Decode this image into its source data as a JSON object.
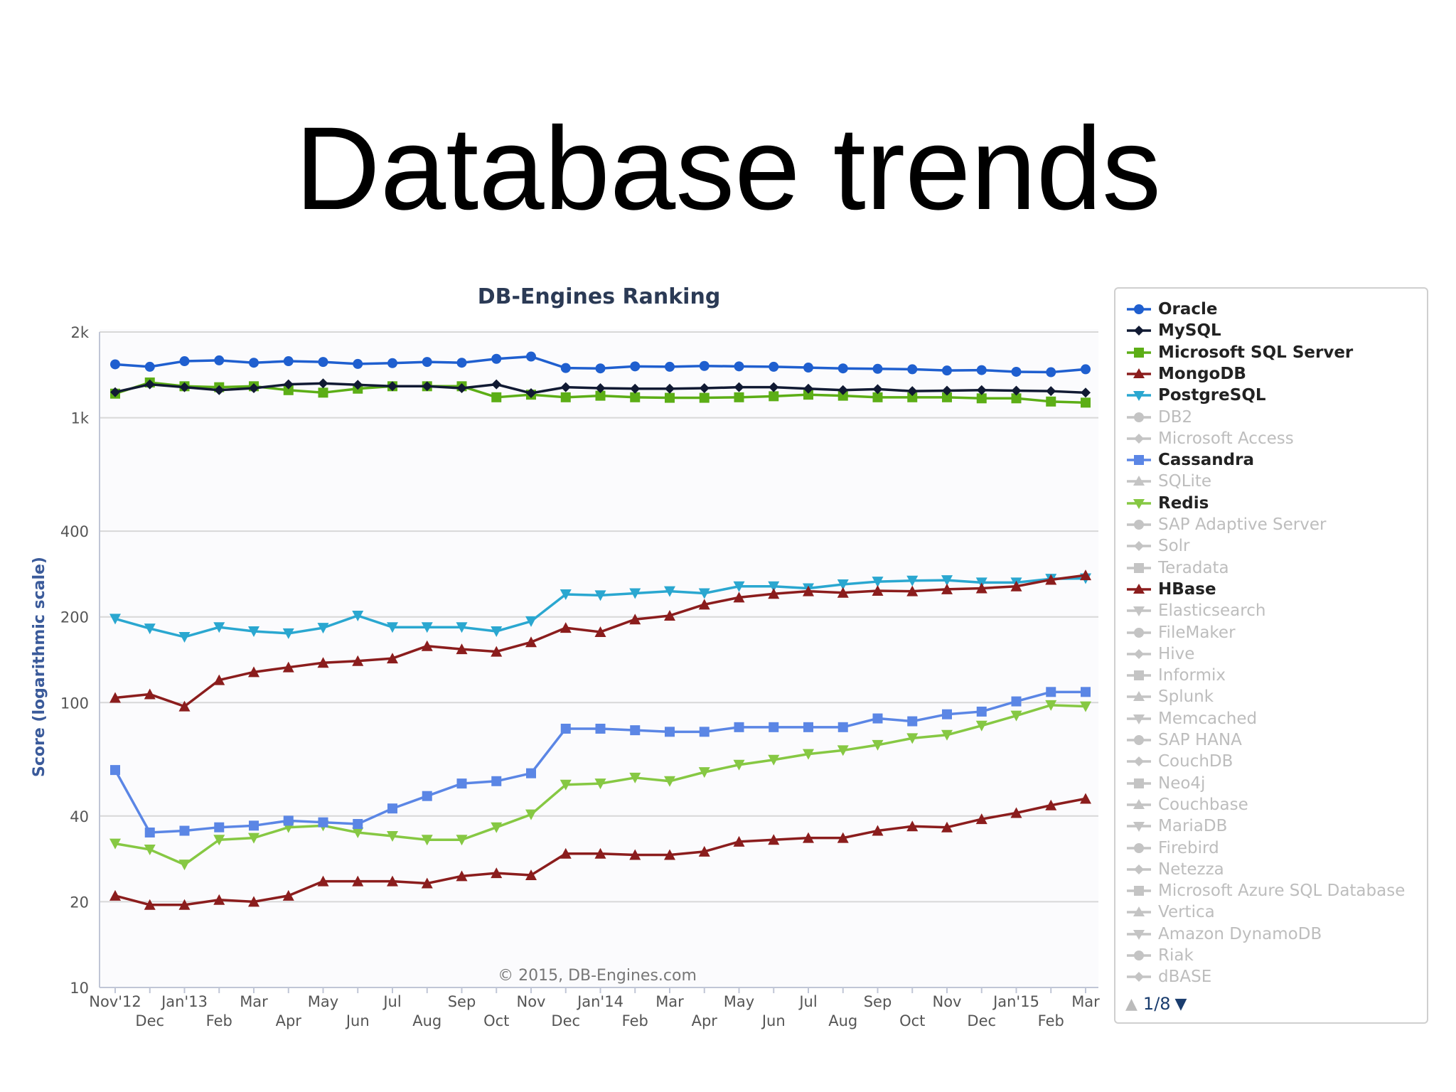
{
  "slide": {
    "title": "Database trends"
  },
  "chart_data": {
    "type": "line",
    "title": "DB-Engines Ranking",
    "ylabel": "Score (logarithmic scale)",
    "yscale": "log",
    "ylim": [
      10,
      2000
    ],
    "yticks": [
      10,
      20,
      40,
      100,
      200,
      400,
      1000,
      2000
    ],
    "ytick_labels": [
      "10",
      "20",
      "40",
      "100",
      "200",
      "400",
      "1k",
      "2k"
    ],
    "grid": true,
    "legend_position": "right",
    "credit": "© 2015, DB-Engines.com",
    "x": [
      "2012-11",
      "2012-12",
      "2013-01",
      "2013-02",
      "2013-03",
      "2013-04",
      "2013-05",
      "2013-06",
      "2013-07",
      "2013-08",
      "2013-09",
      "2013-10",
      "2013-11",
      "2013-12",
      "2014-01",
      "2014-02",
      "2014-03",
      "2014-04",
      "2014-05",
      "2014-06",
      "2014-07",
      "2014-08",
      "2014-09",
      "2014-10",
      "2014-11",
      "2014-12",
      "2015-01",
      "2015-02",
      "2015-03"
    ],
    "xtick_labels_top": [
      "Nov'12",
      "Jan'13",
      "Mar",
      "May",
      "Jul",
      "Sep",
      "Nov",
      "Jan'14",
      "Mar",
      "May",
      "Jul",
      "Sep",
      "Nov",
      "Jan'15",
      "Mar"
    ],
    "xtick_labels_bottom": [
      "Dec",
      "Feb",
      "Apr",
      "Jun",
      "Aug",
      "Oct",
      "Dec",
      "Feb",
      "Apr",
      "Jun",
      "Aug",
      "Oct",
      "Dec",
      "Feb"
    ],
    "series": [
      {
        "name": "Oracle",
        "color": "#1f5fcf",
        "marker": "circle",
        "visible": true,
        "values": [
          1540,
          1510,
          1580,
          1590,
          1560,
          1580,
          1570,
          1545,
          1555,
          1570,
          1560,
          1610,
          1640,
          1495,
          1490,
          1515,
          1510,
          1520,
          1515,
          1510,
          1500,
          1490,
          1485,
          1480,
          1465,
          1470,
          1450,
          1445,
          1480
        ]
      },
      {
        "name": "MySQL",
        "color": "#111a33",
        "marker": "diamond",
        "visible": true,
        "values": [
          1230,
          1310,
          1280,
          1250,
          1270,
          1310,
          1320,
          1305,
          1290,
          1290,
          1270,
          1310,
          1220,
          1280,
          1270,
          1265,
          1265,
          1270,
          1280,
          1280,
          1265,
          1250,
          1260,
          1240,
          1245,
          1250,
          1245,
          1240,
          1225
        ]
      },
      {
        "name": "Microsoft SQL Server",
        "color": "#5cae16",
        "marker": "square",
        "visible": true,
        "values": [
          1215,
          1330,
          1290,
          1280,
          1290,
          1250,
          1225,
          1265,
          1290,
          1290,
          1290,
          1180,
          1205,
          1180,
          1195,
          1180,
          1175,
          1175,
          1180,
          1190,
          1205,
          1195,
          1180,
          1180,
          1180,
          1170,
          1170,
          1140,
          1130
        ]
      },
      {
        "name": "MongoDB",
        "color": "#8b1d1d",
        "marker": "triangle",
        "visible": true,
        "values": [
          104,
          107,
          97,
          120,
          128,
          133,
          138,
          140,
          143,
          158,
          154,
          151,
          163,
          183,
          177,
          196,
          202,
          221,
          234,
          241,
          246,
          243,
          247,
          246,
          250,
          252,
          256,
          270,
          280
        ]
      },
      {
        "name": "PostgreSQL",
        "color": "#2aa7d0",
        "marker": "triangle-down",
        "visible": true,
        "values": [
          197,
          182,
          170,
          184,
          178,
          175,
          183,
          202,
          184,
          184,
          184,
          178,
          193,
          240,
          238,
          242,
          246,
          242,
          256,
          256,
          252,
          260,
          266,
          268,
          269,
          264,
          264,
          272,
          273
        ]
      },
      {
        "name": "DB2",
        "color": "#bdbdbd",
        "marker": "circle",
        "visible": false
      },
      {
        "name": "Microsoft Access",
        "color": "#bdbdbd",
        "marker": "diamond",
        "visible": false
      },
      {
        "name": "Cassandra",
        "color": "#5b86e5",
        "marker": "square",
        "visible": true,
        "values": [
          58,
          35,
          35.5,
          36.5,
          37,
          38.5,
          38,
          37.5,
          42.5,
          47,
          52,
          53,
          56.5,
          81,
          81,
          80,
          79,
          79,
          82,
          82,
          82,
          82,
          88,
          86,
          91,
          93,
          101,
          109,
          109
        ]
      },
      {
        "name": "SQLite",
        "color": "#bdbdbd",
        "marker": "triangle",
        "visible": false
      },
      {
        "name": "Redis",
        "color": "#86c843",
        "marker": "triangle-down",
        "visible": true,
        "values": [
          32,
          30.5,
          27,
          33,
          33.5,
          36.5,
          37,
          35,
          34,
          33,
          33,
          36.5,
          40.5,
          51.5,
          52,
          54.5,
          53,
          57,
          60.5,
          63,
          66,
          68,
          71,
          75,
          77,
          83,
          90,
          98,
          97
        ]
      },
      {
        "name": "SAP Adaptive Server",
        "color": "#bdbdbd",
        "marker": "circle",
        "visible": false
      },
      {
        "name": "Solr",
        "color": "#bdbdbd",
        "marker": "diamond",
        "visible": false
      },
      {
        "name": "Teradata",
        "color": "#bdbdbd",
        "marker": "square",
        "visible": false
      },
      {
        "name": "HBase",
        "color": "#8b1d1d",
        "marker": "triangle",
        "visible": true,
        "values": [
          21,
          19.5,
          19.5,
          20.3,
          20,
          21,
          23.6,
          23.6,
          23.6,
          23.2,
          24.6,
          25.2,
          24.8,
          29.5,
          29.5,
          29.2,
          29.2,
          30,
          32.5,
          33,
          33.5,
          33.5,
          35.5,
          36.8,
          36.5,
          39,
          41,
          43.6,
          46
        ]
      },
      {
        "name": "Elasticsearch",
        "color": "#bdbdbd",
        "marker": "triangle-down",
        "visible": false
      },
      {
        "name": "FileMaker",
        "color": "#bdbdbd",
        "marker": "circle",
        "visible": false
      },
      {
        "name": "Hive",
        "color": "#bdbdbd",
        "marker": "diamond",
        "visible": false
      },
      {
        "name": "Informix",
        "color": "#bdbdbd",
        "marker": "square",
        "visible": false
      },
      {
        "name": "Splunk",
        "color": "#bdbdbd",
        "marker": "triangle",
        "visible": false
      },
      {
        "name": "Memcached",
        "color": "#bdbdbd",
        "marker": "triangle-down",
        "visible": false
      },
      {
        "name": "SAP HANA",
        "color": "#bdbdbd",
        "marker": "circle",
        "visible": false
      },
      {
        "name": "CouchDB",
        "color": "#bdbdbd",
        "marker": "diamond",
        "visible": false
      },
      {
        "name": "Neo4j",
        "color": "#bdbdbd",
        "marker": "square",
        "visible": false
      },
      {
        "name": "Couchbase",
        "color": "#bdbdbd",
        "marker": "triangle",
        "visible": false
      },
      {
        "name": "MariaDB",
        "color": "#bdbdbd",
        "marker": "triangle-down",
        "visible": false
      },
      {
        "name": "Firebird",
        "color": "#bdbdbd",
        "marker": "circle",
        "visible": false
      },
      {
        "name": "Netezza",
        "color": "#bdbdbd",
        "marker": "diamond",
        "visible": false
      },
      {
        "name": "Microsoft Azure SQL Database",
        "color": "#bdbdbd",
        "marker": "square",
        "visible": false
      },
      {
        "name": "Vertica",
        "color": "#bdbdbd",
        "marker": "triangle",
        "visible": false
      },
      {
        "name": "Amazon DynamoDB",
        "color": "#bdbdbd",
        "marker": "triangle-down",
        "visible": false
      },
      {
        "name": "Riak",
        "color": "#bdbdbd",
        "marker": "circle",
        "visible": false
      },
      {
        "name": "dBASE",
        "color": "#bdbdbd",
        "marker": "diamond",
        "visible": false
      }
    ],
    "legend_pager": "1/8"
  }
}
